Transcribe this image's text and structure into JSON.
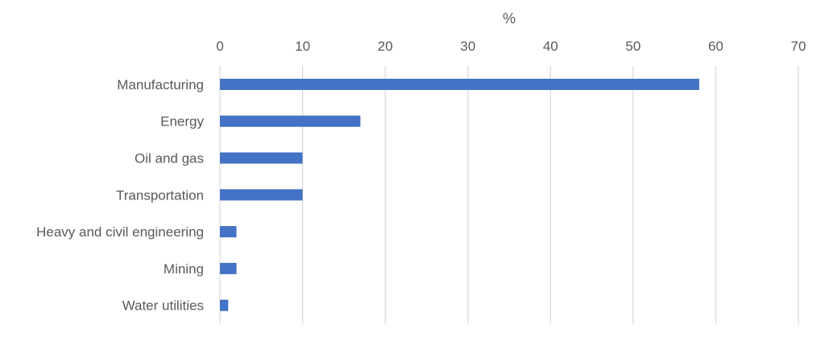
{
  "chart_data": {
    "type": "bar",
    "orientation": "horizontal",
    "title": "",
    "xlabel": "%",
    "ylabel": "",
    "categories": [
      "Manufacturing",
      "Energy",
      "Oil and gas",
      "Transportation",
      "Heavy and civil engineering",
      "Mining",
      "Water utilities"
    ],
    "values": [
      58,
      17,
      10,
      10,
      2,
      2,
      1
    ],
    "xlim": [
      0,
      70
    ],
    "xticks": [
      0,
      10,
      20,
      30,
      40,
      50,
      60,
      70
    ],
    "x_axis_position": "top",
    "grid": true,
    "legend": "none",
    "colors": {
      "bar": "#4472c4",
      "grid": "#d9d9d9",
      "text": "#595959"
    }
  }
}
